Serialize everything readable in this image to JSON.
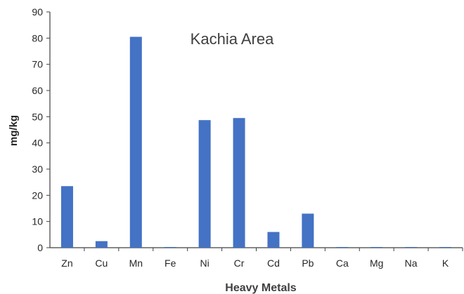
{
  "chart_data": {
    "type": "bar",
    "title": "Kachia Area",
    "xlabel": "Heavy Metals",
    "ylabel": "mg/kg",
    "ylim": [
      0,
      90
    ],
    "yticks": [
      0,
      10,
      20,
      30,
      40,
      50,
      60,
      70,
      80,
      90
    ],
    "categories": [
      "Zn",
      "Cu",
      "Mn",
      "Fe",
      "Ni",
      "Cr",
      "Cd",
      "Pb",
      "Ca",
      "Mg",
      "Na",
      "K"
    ],
    "values": [
      23.5,
      2.5,
      80.5,
      0.2,
      48.7,
      49.5,
      6.0,
      13.0,
      0.2,
      0.2,
      0.2,
      0.1
    ],
    "bar_color": "#4472C4",
    "grid": false,
    "legend": "none"
  }
}
